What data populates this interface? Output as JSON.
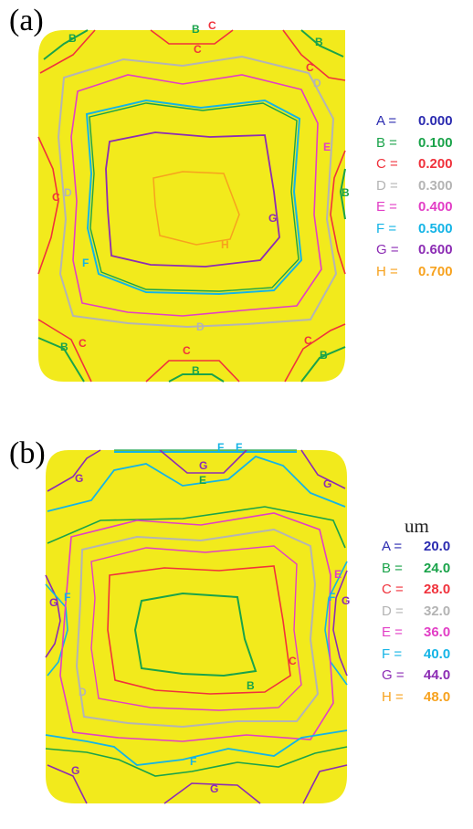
{
  "colors": {
    "A": "#2b2bb0",
    "B": "#1aa34a",
    "C": "#f0323c",
    "D": "#b4b4b4",
    "E": "#e23ec6",
    "F": "#14b4e6",
    "G": "#8c2cb4",
    "H": "#f7a21e",
    "fill": "#f2ea1c"
  },
  "panel_a": {
    "label": "(a)",
    "legend": [
      {
        "key": "A =",
        "value": "0.000",
        "color": "A"
      },
      {
        "key": "B =",
        "value": "0.100",
        "color": "B"
      },
      {
        "key": "C =",
        "value": "0.200",
        "color": "C"
      },
      {
        "key": "D =",
        "value": "0.300",
        "color": "D"
      },
      {
        "key": "E =",
        "value": "0.400",
        "color": "E"
      },
      {
        "key": "F =",
        "value": "0.500",
        "color": "F"
      },
      {
        "key": "G =",
        "value": "0.600",
        "color": "G"
      },
      {
        "key": "H =",
        "value": "0.700",
        "color": "H"
      }
    ],
    "tags": [
      "B",
      "C",
      "B",
      "C",
      "B",
      "C",
      "D",
      "E",
      "B",
      "C",
      "D",
      "F",
      "G",
      "H",
      "D",
      "B",
      "C",
      "C",
      "B",
      "C",
      "B"
    ]
  },
  "panel_b": {
    "label": "(b)",
    "unit": "um",
    "legend": [
      {
        "key": "A =",
        "value": "20.0",
        "color": "A"
      },
      {
        "key": "B =",
        "value": "24.0",
        "color": "B"
      },
      {
        "key": "C =",
        "value": "28.0",
        "color": "C"
      },
      {
        "key": "D =",
        "value": "32.0",
        "color": "D"
      },
      {
        "key": "E =",
        "value": "36.0",
        "color": "E"
      },
      {
        "key": "F =",
        "value": "40.0",
        "color": "F"
      },
      {
        "key": "G =",
        "value": "44.0",
        "color": "G"
      },
      {
        "key": "H =",
        "value": "48.0",
        "color": "H"
      }
    ],
    "tags": [
      "F",
      "F",
      "G",
      "G",
      "E",
      "G",
      "E",
      "G",
      "F",
      "F",
      "G",
      "C",
      "B",
      "D",
      "F",
      "G",
      "G"
    ]
  }
}
